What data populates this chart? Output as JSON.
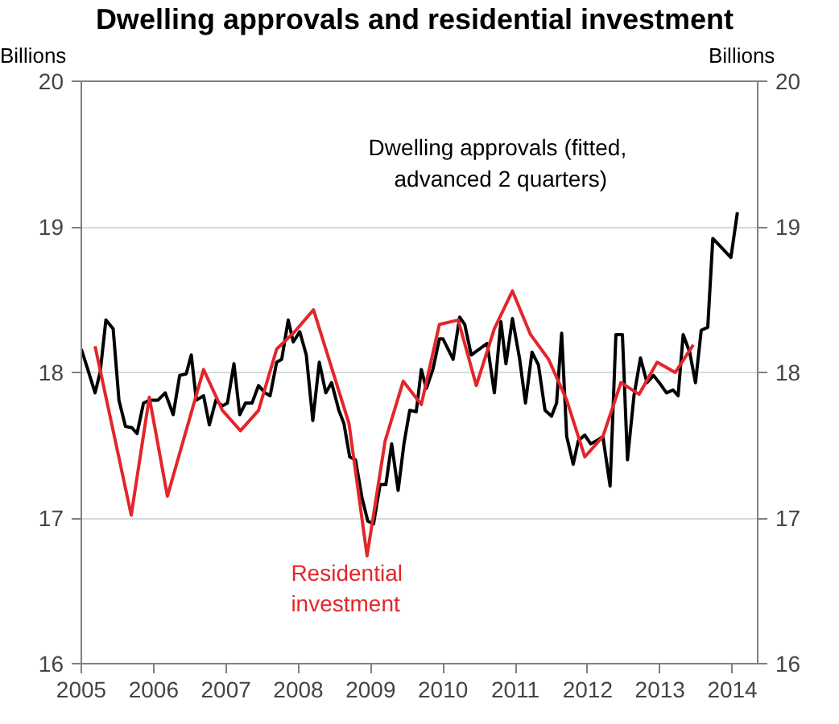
{
  "chart_data": {
    "type": "line",
    "title": "Dwelling approvals and residential investment",
    "ylabel": "Billions",
    "y2label": "Billions",
    "xlim": [
      2005,
      2014.35
    ],
    "xticks": [
      2005,
      2006,
      2007,
      2008,
      2009,
      2010,
      2011,
      2012,
      2013,
      2014
    ],
    "ylim": [
      16,
      20
    ],
    "yticks": [
      16,
      17,
      18,
      19,
      20
    ],
    "y2lim": [
      16,
      20
    ],
    "y2ticks": [
      16,
      17,
      18,
      19,
      20
    ],
    "grid": "y",
    "line_style": "solid",
    "series": [
      {
        "name": "Dwelling approvals (fitted, advanced 2 quarters)",
        "color": "#000000",
        "x": [
          2005.0,
          2005.09,
          2005.19,
          2005.26,
          2005.34,
          2005.44,
          2005.52,
          2005.61,
          2005.7,
          2005.77,
          2005.86,
          2005.95,
          2006.06,
          2006.16,
          2006.27,
          2006.36,
          2006.45,
          2006.52,
          2006.59,
          2006.69,
          2006.77,
          2006.86,
          2006.95,
          2007.02,
          2007.11,
          2007.19,
          2007.27,
          2007.36,
          2007.45,
          2007.54,
          2007.61,
          2007.7,
          2007.77,
          2007.86,
          2007.93,
          2008.02,
          2008.11,
          2008.2,
          2008.29,
          2008.38,
          2008.46,
          2008.56,
          2008.63,
          2008.71,
          2008.79,
          2008.88,
          2008.96,
          2009.04,
          2009.13,
          2009.21,
          2009.29,
          2009.38,
          2009.46,
          2009.54,
          2009.63,
          2009.7,
          2009.77,
          2009.86,
          2009.95,
          2010.0,
          2010.14,
          2010.23,
          2010.3,
          2010.39,
          2010.5,
          2010.61,
          2010.71,
          2010.8,
          2010.87,
          2010.96,
          2011.06,
          2011.14,
          2011.23,
          2011.32,
          2011.41,
          2011.5,
          2011.57,
          2011.64,
          2011.71,
          2011.8,
          2011.87,
          2011.96,
          2012.04,
          2012.12,
          2012.21,
          2012.31,
          2012.39,
          2012.48,
          2012.55,
          2012.64,
          2012.73,
          2012.82,
          2012.91,
          2012.99,
          2013.09,
          2013.18,
          2013.25,
          2013.32,
          2013.41,
          2013.49,
          2013.57,
          2013.66,
          2013.73,
          2013.98,
          2014.07
        ],
        "values": [
          18.16,
          18.02,
          17.86,
          18.0,
          18.36,
          18.3,
          17.81,
          17.63,
          17.62,
          17.58,
          17.79,
          17.81,
          17.81,
          17.86,
          17.71,
          17.98,
          17.99,
          18.12,
          17.81,
          17.84,
          17.64,
          17.81,
          17.77,
          17.79,
          18.06,
          17.71,
          17.79,
          17.79,
          17.91,
          17.86,
          17.84,
          18.07,
          18.09,
          18.36,
          18.21,
          18.28,
          18.12,
          17.67,
          18.07,
          17.86,
          17.93,
          17.74,
          17.65,
          17.42,
          17.4,
          17.14,
          16.98,
          16.96,
          17.23,
          17.23,
          17.51,
          17.19,
          17.51,
          17.74,
          17.73,
          18.02,
          17.89,
          18.02,
          18.23,
          18.23,
          18.09,
          18.38,
          18.33,
          18.12,
          18.16,
          18.2,
          17.86,
          18.35,
          18.06,
          18.37,
          18.09,
          17.79,
          18.14,
          18.05,
          17.74,
          17.7,
          17.79,
          18.27,
          17.56,
          17.37,
          17.53,
          17.57,
          17.51,
          17.53,
          17.56,
          17.22,
          18.26,
          18.26,
          17.4,
          17.84,
          18.1,
          17.93,
          17.98,
          17.93,
          17.86,
          17.88,
          17.84,
          18.26,
          18.14,
          17.93,
          18.29,
          18.31,
          18.92,
          18.79,
          19.1
        ]
      },
      {
        "name": "Residential investment",
        "color": "#e3262b",
        "x": [
          2005.19,
          2005.69,
          2005.94,
          2006.19,
          2006.69,
          2006.95,
          2007.2,
          2007.45,
          2007.7,
          2007.95,
          2008.21,
          2008.7,
          2008.95,
          2009.2,
          2009.45,
          2009.7,
          2009.95,
          2010.21,
          2010.46,
          2010.71,
          2010.96,
          2011.21,
          2011.46,
          2011.71,
          2011.96,
          2012.21,
          2012.46,
          2012.71,
          2012.96,
          2013.21,
          2013.46
        ],
        "values": [
          18.18,
          17.02,
          17.83,
          17.15,
          18.02,
          17.74,
          17.6,
          17.74,
          18.16,
          18.28,
          18.43,
          17.65,
          16.74,
          17.53,
          17.94,
          17.78,
          18.33,
          18.36,
          17.91,
          18.3,
          18.56,
          18.26,
          18.09,
          17.81,
          17.42,
          17.56,
          17.93,
          17.85,
          18.07,
          18.0,
          18.19
        ]
      }
    ]
  }
}
